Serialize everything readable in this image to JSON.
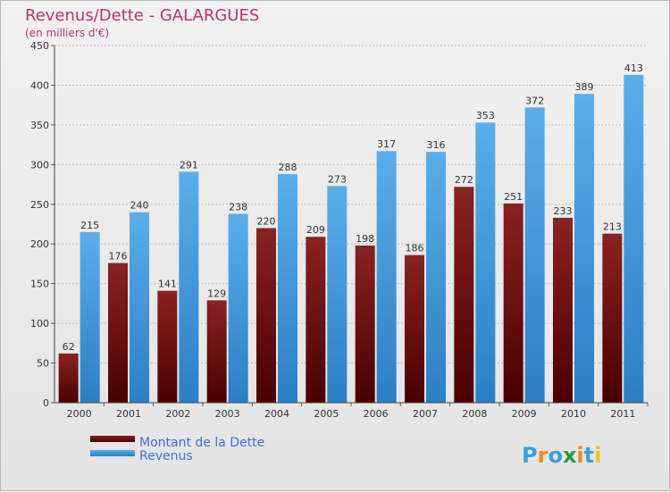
{
  "chart_data": {
    "type": "bar",
    "title": "Revenus/Dette - GALARGUES",
    "subtitle": "(en milliers d'€)",
    "categories": [
      "2000",
      "2001",
      "2002",
      "2003",
      "2004",
      "2005",
      "2006",
      "2007",
      "2008",
      "2009",
      "2010",
      "2011"
    ],
    "series": [
      {
        "name": "Montant de la Dette",
        "color": "#7a1a1a",
        "values": [
          62,
          176,
          141,
          129,
          220,
          209,
          198,
          186,
          272,
          251,
          233,
          213
        ]
      },
      {
        "name": "Revenus",
        "color": "#4ba3e6",
        "values": [
          215,
          240,
          291,
          238,
          288,
          273,
          317,
          316,
          353,
          372,
          389,
          413
        ]
      }
    ],
    "ylim": [
      0,
      450
    ],
    "yticks": [
      0,
      50,
      100,
      150,
      200,
      250,
      300,
      350,
      400,
      450
    ],
    "grid": true,
    "legend": "bottom-left"
  },
  "logo": {
    "letters": [
      {
        "ch": "P",
        "color": "#3aa0e0"
      },
      {
        "ch": "r",
        "color": "#f08a1c"
      },
      {
        "ch": "o",
        "color": "#3aa0e0"
      },
      {
        "ch": "x",
        "color": "#2c9a3a"
      },
      {
        "ch": "i",
        "color": "#f08a1c"
      },
      {
        "ch": "t",
        "color": "#3aa0e0"
      },
      {
        "ch": "i",
        "color": "#f0c020"
      }
    ]
  }
}
